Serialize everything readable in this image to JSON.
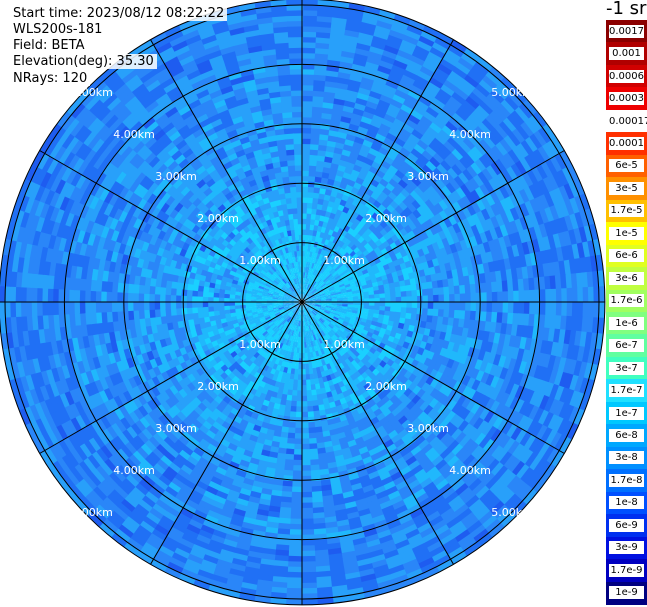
{
  "info": {
    "start_time": "Start time: 2023/08/12 08:22:22",
    "instrument": "WLS200s-181",
    "field": "Field: BETA",
    "elevation": "Elevation(deg): 35.30",
    "nrays": "NRays: 120"
  },
  "colorbar": {
    "title": "-1 sr",
    "labels": [
      "0.0017",
      "0.001",
      "0.0006",
      "0.0003",
      "0.00017",
      "0.0001",
      "6e-5",
      "3e-5",
      "1.7e-5",
      "1e-5",
      "6e-6",
      "3e-6",
      "1.7e-6",
      "1e-6",
      "6e-7",
      "3e-7",
      "1.7e-7",
      "1e-7",
      "6e-8",
      "3e-8",
      "1.7e-8",
      "1e-8",
      "6e-9",
      "3e-9",
      "1.7e-9",
      "1e-9"
    ],
    "colors": [
      "#8b0000",
      "#b00000",
      "#d00000",
      "#ee0000",
      "#ffffff",
      "#ff3000",
      "#ff6000",
      "#ff9000",
      "#ffc000",
      "#ffff00",
      "#e0ff20",
      "#c0ff40",
      "#a0ff60",
      "#80ff80",
      "#60ffa0",
      "#40ffc0",
      "#20e0ff",
      "#00c8ff",
      "#00a8ff",
      "#0090ff",
      "#0070ff",
      "#0050ff",
      "#0030f0",
      "#0010e0",
      "#0000c0",
      "#000080"
    ]
  },
  "chart_data": {
    "type": "heatmap",
    "projection": "polar PPI",
    "field": "BETA",
    "units": "sr-1",
    "elevation_deg": 35.3,
    "n_rays": 120,
    "range_rings_km": [
      1,
      2,
      3,
      4,
      5
    ],
    "ring_labels": [
      "1.00km",
      "2.00km",
      "3.00km",
      "4.00km",
      "5.00km"
    ],
    "max_range_km": 5.1,
    "azimuth_gridlines_deg": [
      0,
      30,
      60,
      90,
      120,
      150,
      180,
      210,
      240,
      270,
      300,
      330
    ],
    "typical_value_by_range": [
      {
        "range_km": 0.5,
        "value": "1.7e-7"
      },
      {
        "range_km": 1.5,
        "value": "1e-7"
      },
      {
        "range_km": 3.0,
        "value": "6e-8"
      },
      {
        "range_km": 4.5,
        "value": "3e-8"
      }
    ],
    "scale": "log",
    "color_range": [
      "1e-9",
      "0.0017"
    ]
  }
}
